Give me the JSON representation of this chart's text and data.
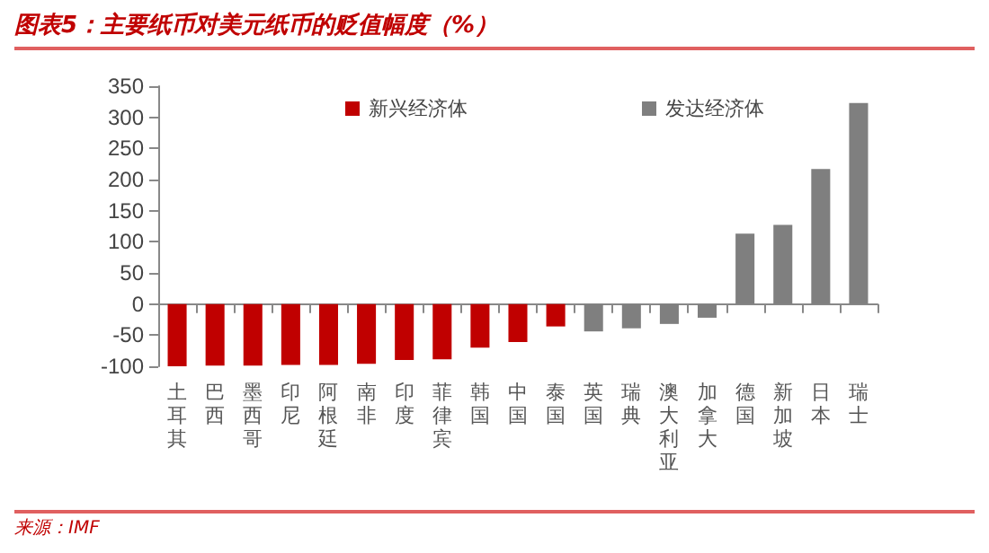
{
  "chart_data": {
    "type": "bar",
    "title": "图表5：主要纸币对美元纸币的贬值幅度（%）",
    "categories": [
      "土耳其",
      "巴西",
      "墨西哥",
      "印尼",
      "阿根廷",
      "南非",
      "印度",
      "菲律宾",
      "韩国",
      "中国",
      "泰国",
      "英国",
      "瑞典",
      "澳大利亚",
      "加拿大",
      "德国",
      "新加坡",
      "日本",
      "瑞士"
    ],
    "series": [
      {
        "name": "新兴经济体",
        "color": "#c00000",
        "values": [
          -100,
          -99,
          -99,
          -98,
          -98,
          -96,
          -90,
          -89,
          -70,
          -61,
          -36,
          null,
          null,
          null,
          null,
          null,
          null,
          null,
          null
        ]
      },
      {
        "name": "发达经济体",
        "color": "#7f7f7f",
        "values": [
          null,
          null,
          null,
          null,
          null,
          null,
          null,
          null,
          null,
          null,
          null,
          -44,
          -39,
          -32,
          -22,
          113,
          127,
          217,
          323
        ]
      }
    ],
    "ylim": [
      -100,
      350
    ],
    "yticks": [
      -100,
      -50,
      0,
      50,
      100,
      150,
      200,
      250,
      300,
      350
    ],
    "legend": "top",
    "annotations": [
      "来源：IMF"
    ]
  }
}
